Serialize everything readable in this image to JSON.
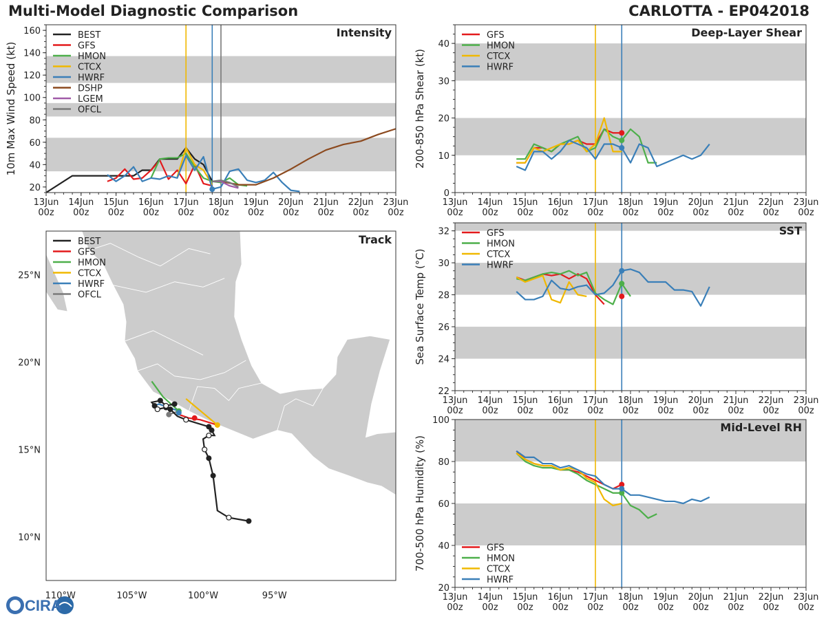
{
  "header": {
    "title": "Multi-Model Diagnostic Comparison",
    "storm": "CARLOTTA - EP042018"
  },
  "logo_text": "CIRA",
  "colors": {
    "BEST": "#222222",
    "GFS": "#e31a1c",
    "HMON": "#4daf4a",
    "CTCX": "#f0b800",
    "HWRF": "#3a7fb8",
    "DSHP": "#8c4a1f",
    "LGEM": "#a05aa8",
    "OFCL": "#7a7a7a",
    "band": "#cccccc",
    "land": "#cccccc",
    "vline_ctcx": "#f0b800",
    "vline_hwrf": "#3a7fb8",
    "vline_gray": "#777777"
  },
  "time_axis": {
    "ticks": [
      "13Jun\n00z",
      "14Jun\n00z",
      "15Jun\n00z",
      "16Jun\n00z",
      "17Jun\n00z",
      "18Jun\n00z",
      "19Jun\n00z",
      "20Jun\n00z",
      "21Jun\n00z",
      "22Jun\n00z",
      "23Jun\n00z"
    ],
    "range_days": [
      0,
      10
    ]
  },
  "chart_data": [
    {
      "id": "intensity",
      "type": "line",
      "title": "Intensity",
      "ylabel": "10m Max Wind Speed (kt)",
      "ylim": [
        15,
        165
      ],
      "yticks": [
        20,
        40,
        60,
        80,
        100,
        120,
        140,
        160
      ],
      "bands": [
        [
          34,
          64
        ],
        [
          83,
          95
        ],
        [
          113,
          137
        ]
      ],
      "vlines": [
        {
          "x": 4.0,
          "color": "vline_ctcx"
        },
        {
          "x": 4.75,
          "color": "vline_hwrf"
        },
        {
          "x": 5.0,
          "color": "vline_gray"
        }
      ],
      "legend": [
        "BEST",
        "GFS",
        "HMON",
        "CTCX",
        "HWRF",
        "DSHP",
        "LGEM",
        "OFCL"
      ],
      "series": [
        {
          "name": "BEST",
          "x": [
            0,
            0.75,
            1.0,
            1.5,
            2.0,
            2.25,
            2.5,
            2.75,
            3.0,
            3.25,
            3.5,
            3.75,
            4.0,
            4.25,
            4.5,
            4.75
          ],
          "y": [
            15,
            30,
            30,
            30,
            30,
            30,
            30,
            35,
            35,
            45,
            45,
            45,
            55,
            45,
            40,
            25
          ]
        },
        {
          "name": "GFS",
          "x": [
            1.75,
            2.0,
            2.25,
            2.5,
            2.75,
            3.0,
            3.25,
            3.5,
            3.75,
            4.0,
            4.25,
            4.5,
            4.75
          ],
          "y": [
            25,
            28,
            36,
            27,
            28,
            35,
            44,
            27,
            35,
            23,
            40,
            23,
            21
          ]
        },
        {
          "name": "HMON",
          "x": [
            3.0,
            3.25,
            3.5,
            3.75,
            4.0,
            4.25,
            4.5,
            4.75,
            5.0,
            5.25,
            5.5,
            5.75
          ],
          "y": [
            28,
            45,
            46,
            46,
            50,
            38,
            28,
            25,
            24,
            28,
            22,
            21
          ]
        },
        {
          "name": "CTCX",
          "x": [
            3.75,
            4.0,
            4.25,
            4.5,
            4.75
          ],
          "y": [
            29,
            55,
            40,
            35,
            22
          ]
        },
        {
          "name": "HWRF",
          "x": [
            1.75,
            2.0,
            2.25,
            2.5,
            2.75,
            3.0,
            3.25,
            3.5,
            3.75,
            4.0,
            4.25,
            4.5,
            4.75,
            5.0,
            5.25,
            5.5,
            5.75,
            6.0,
            6.25,
            6.5,
            6.75,
            7.0,
            7.25
          ],
          "y": [
            31,
            25,
            30,
            38,
            25,
            28,
            27,
            30,
            28,
            48,
            35,
            47,
            18,
            20,
            34,
            36,
            26,
            24,
            26,
            33,
            24,
            17,
            16
          ]
        },
        {
          "name": "DSHP",
          "x": [
            4.75,
            5.0,
            5.5,
            6.0,
            6.5,
            7.0,
            7.5,
            8.0,
            8.5,
            9.0,
            9.5,
            10.0
          ],
          "y": [
            25,
            25,
            22,
            22,
            28,
            36,
            45,
            53,
            58,
            61,
            67,
            72
          ]
        },
        {
          "name": "LGEM",
          "x": [
            4.75,
            5.0,
            5.25,
            5.5
          ],
          "y": [
            25,
            25,
            21,
            19
          ]
        },
        {
          "name": "OFCL",
          "x": [
            4.75,
            5.0,
            5.25,
            5.5
          ],
          "y": [
            25,
            26,
            24,
            20
          ]
        }
      ],
      "end_markers": [
        {
          "series": "HWRF",
          "x": 4.75,
          "y": 18
        }
      ]
    },
    {
      "id": "shear",
      "type": "line",
      "title": "Deep-Layer Shear",
      "ylabel": "200-850 hPa Shear (kt)",
      "ylim": [
        0,
        45
      ],
      "yticks": [
        0,
        10,
        20,
        30,
        40
      ],
      "bands": [
        [
          10,
          20
        ],
        [
          30,
          40
        ]
      ],
      "vlines": [
        {
          "x": 4.0,
          "color": "vline_ctcx"
        },
        {
          "x": 4.75,
          "color": "vline_hwrf"
        }
      ],
      "legend": [
        "GFS",
        "HMON",
        "CTCX",
        "HWRF"
      ],
      "series": [
        {
          "name": "GFS",
          "x": [
            1.75,
            2.0,
            2.25,
            2.5,
            2.75,
            3.0,
            3.25,
            3.5,
            3.75,
            4.0,
            4.25,
            4.5,
            4.75
          ],
          "y": [
            8,
            8,
            12,
            12,
            11,
            13,
            13,
            14,
            13,
            13,
            17,
            16,
            16
          ]
        },
        {
          "name": "HMON",
          "x": [
            1.75,
            2.0,
            2.25,
            2.5,
            2.75,
            3.0,
            3.25,
            3.5,
            3.75,
            4.0,
            4.25,
            4.5,
            4.75,
            5.0,
            5.25,
            5.5,
            5.75
          ],
          "y": [
            9,
            9,
            13,
            12,
            11,
            13,
            14,
            15,
            11,
            12,
            17,
            15,
            14,
            17,
            15,
            8,
            8
          ]
        },
        {
          "name": "CTCX",
          "x": [
            1.75,
            2.0,
            2.25,
            2.5,
            2.75,
            3.0,
            3.25,
            3.5,
            3.75,
            4.0,
            4.25,
            4.5,
            4.75
          ],
          "y": [
            8,
            8,
            12,
            11,
            12,
            13,
            13,
            14,
            11,
            13,
            20,
            11,
            11
          ]
        },
        {
          "name": "HWRF",
          "x": [
            1.75,
            2.0,
            2.25,
            2.5,
            2.75,
            3.0,
            3.25,
            3.5,
            3.75,
            4.0,
            4.25,
            4.5,
            4.75,
            5.0,
            5.25,
            5.5,
            5.75,
            6.0,
            6.25,
            6.5,
            6.75,
            7.0,
            7.25
          ],
          "y": [
            7,
            6,
            11,
            11,
            9,
            11,
            14,
            13,
            12,
            9,
            13,
            13,
            12,
            8,
            13,
            12,
            7,
            8,
            9,
            10,
            9,
            10,
            13
          ]
        }
      ],
      "end_markers": [
        {
          "series": "GFS",
          "x": 4.75,
          "y": 16
        },
        {
          "series": "HMON",
          "x": 4.75,
          "y": 14
        },
        {
          "series": "HWRF",
          "x": 4.75,
          "y": 12
        }
      ]
    },
    {
      "id": "sst",
      "type": "line",
      "title": "SST",
      "ylabel": "Sea Surface Temp (°C)",
      "ylim": [
        22,
        32.5
      ],
      "yticks": [
        22,
        24,
        26,
        28,
        30,
        32
      ],
      "bands": [
        [
          24,
          26
        ],
        [
          28,
          30
        ],
        [
          32,
          33
        ]
      ],
      "vlines": [
        {
          "x": 4.0,
          "color": "vline_ctcx"
        },
        {
          "x": 4.75,
          "color": "vline_hwrf"
        }
      ],
      "legend": [
        "GFS",
        "HMON",
        "CTCX",
        "HWRF"
      ],
      "series": [
        {
          "name": "GFS",
          "x": [
            1.75,
            2.0,
            2.25,
            2.5,
            2.75,
            3.0,
            3.25,
            3.5,
            3.75,
            4.0,
            4.25
          ],
          "y": [
            29.1,
            28.9,
            29.1,
            29.3,
            29.2,
            29.3,
            29.0,
            29.3,
            29.0,
            28.0,
            27.4
          ]
        },
        {
          "name": "HMON",
          "x": [
            1.75,
            2.0,
            2.25,
            2.5,
            2.75,
            3.0,
            3.25,
            3.5,
            3.75,
            4.0,
            4.25,
            4.5,
            4.75,
            5.0
          ],
          "y": [
            29.0,
            28.9,
            29.1,
            29.3,
            29.4,
            29.3,
            29.5,
            29.2,
            29.4,
            28.1,
            27.7,
            27.4,
            28.7,
            27.9
          ]
        },
        {
          "name": "CTCX",
          "x": [
            1.75,
            2.0,
            2.25,
            2.5,
            2.75,
            3.0,
            3.25,
            3.5,
            3.75
          ],
          "y": [
            29.1,
            28.8,
            29.0,
            29.2,
            27.7,
            27.5,
            28.8,
            28.0,
            27.9
          ]
        },
        {
          "name": "HWRF",
          "x": [
            1.75,
            2.0,
            2.25,
            2.5,
            2.75,
            3.0,
            3.25,
            3.5,
            3.75,
            4.0,
            4.25,
            4.5,
            4.75,
            5.0,
            5.25,
            5.5,
            5.75,
            6.0,
            6.25,
            6.5,
            6.75,
            7.0,
            7.25
          ],
          "y": [
            28.2,
            27.7,
            27.7,
            27.9,
            28.9,
            28.4,
            28.3,
            28.5,
            28.6,
            28.0,
            28.1,
            28.6,
            29.5,
            29.6,
            29.4,
            28.8,
            28.8,
            28.8,
            28.3,
            28.3,
            28.2,
            27.3,
            28.5
          ]
        }
      ],
      "end_markers": [
        {
          "series": "GFS",
          "x": 4.75,
          "y": 27.9
        },
        {
          "series": "HMON",
          "x": 4.75,
          "y": 28.7
        },
        {
          "series": "HWRF",
          "x": 4.75,
          "y": 29.5
        }
      ]
    },
    {
      "id": "rh",
      "type": "line",
      "title": "Mid-Level RH",
      "ylabel": "700-500 hPa Humidity (%)",
      "ylim": [
        20,
        100
      ],
      "yticks": [
        20,
        40,
        60,
        80,
        100
      ],
      "bands": [
        [
          40,
          60
        ],
        [
          80,
          100
        ]
      ],
      "vlines": [
        {
          "x": 4.0,
          "color": "vline_ctcx"
        },
        {
          "x": 4.75,
          "color": "vline_hwrf"
        }
      ],
      "legend": [
        "GFS",
        "HMON",
        "CTCX",
        "HWRF"
      ],
      "legend_position": "bottom-left",
      "series": [
        {
          "name": "GFS",
          "x": [
            1.75,
            2.0,
            2.25,
            2.5,
            2.75,
            3.0,
            3.25,
            3.5,
            3.75,
            4.0,
            4.25,
            4.5,
            4.75
          ],
          "y": [
            85,
            81,
            79,
            78,
            78,
            76,
            76,
            75,
            73,
            71,
            69,
            67,
            69
          ]
        },
        {
          "name": "HMON",
          "x": [
            1.75,
            2.0,
            2.25,
            2.5,
            2.75,
            3.0,
            3.25,
            3.5,
            3.75,
            4.0,
            4.25,
            4.5,
            4.75,
            5.0,
            5.25,
            5.5,
            5.75
          ],
          "y": [
            84,
            80,
            78,
            77,
            77,
            76,
            76,
            74,
            71,
            69,
            67,
            65,
            65,
            59,
            57,
            53,
            55
          ]
        },
        {
          "name": "CTCX",
          "x": [
            1.75,
            2.0,
            2.25,
            2.5,
            2.75,
            3.0,
            3.25,
            3.5,
            3.75,
            4.0,
            4.25,
            4.5,
            4.75
          ],
          "y": [
            84,
            81,
            79,
            78,
            78,
            76,
            77,
            76,
            72,
            70,
            62,
            59,
            60
          ]
        },
        {
          "name": "HWRF",
          "x": [
            1.75,
            2.0,
            2.25,
            2.5,
            2.75,
            3.0,
            3.25,
            3.5,
            3.75,
            4.0,
            4.25,
            4.5,
            4.75,
            5.0,
            5.25,
            5.5,
            5.75,
            6.0,
            6.25,
            6.5,
            6.75,
            7.0,
            7.25
          ],
          "y": [
            85,
            82,
            82,
            79,
            79,
            77,
            78,
            76,
            74,
            73,
            69,
            67,
            67,
            64,
            64,
            63,
            62,
            61,
            61,
            60,
            62,
            61,
            63
          ]
        }
      ],
      "end_markers": [
        {
          "series": "GFS",
          "x": 4.75,
          "y": 69
        },
        {
          "series": "HMON",
          "x": 4.75,
          "y": 65
        },
        {
          "series": "HWRF",
          "x": 4.75,
          "y": 67
        }
      ]
    },
    {
      "id": "track",
      "type": "scatter",
      "title": "Track",
      "xlim": [
        -111,
        -86.5
      ],
      "ylim": [
        7.5,
        27.5
      ],
      "xticks": [
        {
          "v": -110,
          "label": "110°W"
        },
        {
          "v": -105,
          "label": "105°W"
        },
        {
          "v": -100,
          "label": "100°W"
        },
        {
          "v": -95,
          "label": "95°W"
        }
      ],
      "yticks": [
        {
          "v": 10,
          "label": "10°N"
        },
        {
          "v": 15,
          "label": "15°N"
        },
        {
          "v": 20,
          "label": "20°N"
        },
        {
          "v": 25,
          "label": "25°N"
        }
      ],
      "legend": [
        "BEST",
        "GFS",
        "HMON",
        "CTCX",
        "HWRF",
        "OFCL"
      ],
      "series": [
        {
          "name": "BEST",
          "lon": [
            -96.8,
            -98.2,
            -99.0,
            -99.3,
            -99.6,
            -99.9,
            -100.0,
            -99.6,
            -99.2,
            -99.4,
            -99.6,
            -100.4,
            -101.2,
            -101.8,
            -102.3,
            -102.6,
            -103.2,
            -103.4,
            -103.6,
            -103.0,
            -102.6,
            -102.0
          ],
          "lat": [
            10.9,
            11.1,
            11.5,
            13.5,
            14.5,
            15.0,
            15.6,
            15.8,
            15.8,
            16.1,
            16.3,
            16.5,
            16.7,
            16.9,
            17.3,
            17.4,
            17.3,
            17.5,
            17.7,
            17.8,
            17.5,
            17.6
          ],
          "open": [
            1,
            5,
            7,
            12,
            16,
            20
          ],
          "filled": [
            0,
            3,
            4,
            9,
            10,
            14,
            15,
            17,
            19,
            21
          ]
        },
        {
          "name": "GFS",
          "lon": [
            -99.0,
            -100.2,
            -101.0,
            -101.7
          ],
          "lat": [
            16.4,
            16.7,
            16.8,
            17.0
          ]
        },
        {
          "name": "HMON",
          "lon": [
            -101.7,
            -102.8,
            -103.6
          ],
          "lat": [
            17.2,
            18.0,
            18.9
          ]
        },
        {
          "name": "CTCX",
          "lon": [
            -99.0,
            -101.2
          ],
          "lat": [
            16.4,
            17.9
          ]
        },
        {
          "name": "HWRF",
          "lon": [
            -101.7,
            -103.1,
            -103.4
          ],
          "lat": [
            17.2,
            17.6,
            17.5
          ]
        },
        {
          "name": "OFCL",
          "lon": [
            -101.7,
            -102.4
          ],
          "lat": [
            17.2,
            17.0
          ]
        }
      ]
    }
  ]
}
